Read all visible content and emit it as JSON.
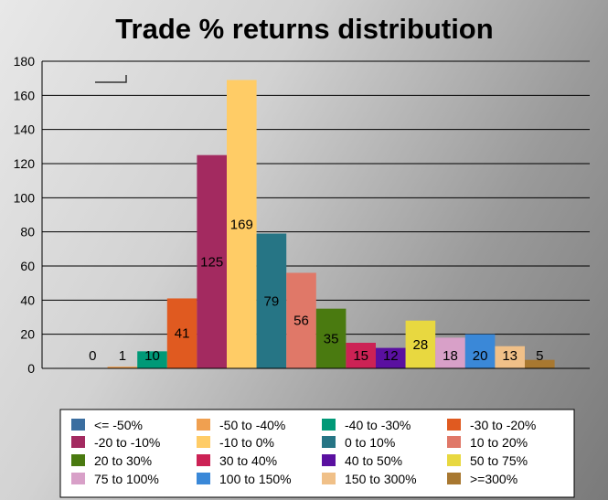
{
  "chart_data": {
    "type": "bar",
    "title": "Trade % returns distribution",
    "xlabel": "",
    "ylabel": "",
    "ylim": [
      0,
      180
    ],
    "yticks": [
      "0",
      "20",
      "40",
      "60",
      "80",
      "100",
      "120",
      "140",
      "160",
      "180"
    ],
    "grid": true,
    "legend_position": "bottom",
    "categories": [
      "<= -50%",
      "-50 to -40%",
      "-40 to -30%",
      "-30 to -20%",
      "-20 to -10%",
      "-10 to 0%",
      "0 to 10%",
      "10 to 20%",
      "20 to 30%",
      "30 to 40%",
      "40 to 50%",
      "50 to 75%",
      "75 to 100%",
      "100 to 150%",
      "150 to 300%",
      ">=300%"
    ],
    "values": [
      0,
      1,
      10,
      41,
      125,
      169,
      79,
      56,
      35,
      15,
      12,
      28,
      18,
      20,
      13,
      5
    ],
    "data_labels": [
      "0",
      "1",
      "10",
      "41",
      "125",
      "169",
      "79",
      "56",
      "35",
      "15",
      "12",
      "28",
      "18",
      "20",
      "13",
      "5"
    ],
    "colors": [
      "#3b6ea0",
      "#f0a050",
      "#009977",
      "#e05a20",
      "#a32a60",
      "#ffcc66",
      "#267585",
      "#e07868",
      "#4a7a10",
      "#cc2255",
      "#5a10a0",
      "#e8d840",
      "#d8a0c8",
      "#3a88d8",
      "#f0c088",
      "#a87830"
    ]
  }
}
